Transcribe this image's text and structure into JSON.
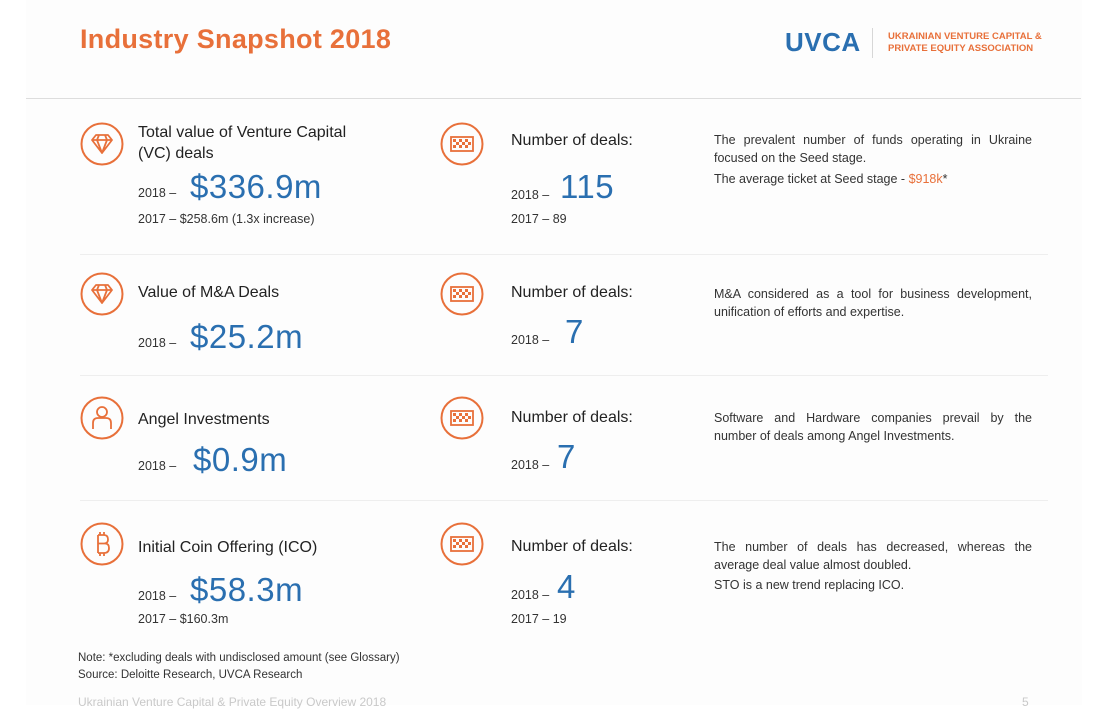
{
  "header": {
    "title": "Industry Snapshot 2018",
    "logo": "UVCA",
    "logo_line1": "UKRAINIAN VENTURE CAPITAL &",
    "logo_line2": "PRIVATE EQUITY ASSOCIATION"
  },
  "rows": [
    {
      "label_line1": "Total value of Venture Capital",
      "label_line2": "(VC) deals",
      "year_2018": "2018 –",
      "value_2018": "$336.9m",
      "line_2017": "2017 – $258.6m (1.3x increase)",
      "deals_label": "Number of deals:",
      "deals_year_2018": "2018 –",
      "deals_2018": "115",
      "deals_2017": "2017 – 89",
      "desc": "The prevalent number of funds operating in Ukraine focused on the Seed stage.",
      "desc2_prefix": "The average ticket at Seed stage - ",
      "desc2_value": "$918k",
      "desc2_suffix": "*"
    },
    {
      "label_line1": "Value of M&A Deals",
      "year_2018": "2018 –",
      "value_2018": "$25.2m",
      "deals_label": "Number of deals:",
      "deals_year_2018": "2018  –",
      "deals_2018": "7",
      "desc": "M&A considered as a tool for business development, unification of efforts and expertise."
    },
    {
      "label_line1": "Angel Investments",
      "year_2018": "2018 –",
      "value_2018": "$0.9m",
      "deals_label": "Number of deals:",
      "deals_year_2018": "2018 –",
      "deals_2018": "7",
      "desc": "Software and Hardware companies prevail by the number of deals among Angel Investments."
    },
    {
      "label_line1": "Initial Coin Offering (ICO)",
      "year_2018": "2018 –",
      "value_2018": "$58.3m",
      "line_2017": "2017 – $160.3m",
      "deals_label": "Number of deals:",
      "deals_year_2018": "2018 –",
      "deals_2018": "4",
      "deals_2017": "2017 – 19",
      "desc": "The number of deals has decreased, whereas the average deal value almost doubled.",
      "desc2": "STO is a new trend replacing ICO."
    }
  ],
  "notes": {
    "note": "Note: *excluding deals with undisclosed amount (see Glossary)",
    "source": "Source: Deloitte Research, UVCA Research"
  },
  "footer": {
    "text": "Ukrainian Venture Capital & Private Equity Overview 2018",
    "page": "5"
  },
  "colors": {
    "accent": "#e8703a",
    "value_blue": "#2a6fb0"
  },
  "icons": [
    "diamond-icon",
    "diamond-icon",
    "person-icon",
    "bitcoin-icon",
    "flag-icon"
  ]
}
